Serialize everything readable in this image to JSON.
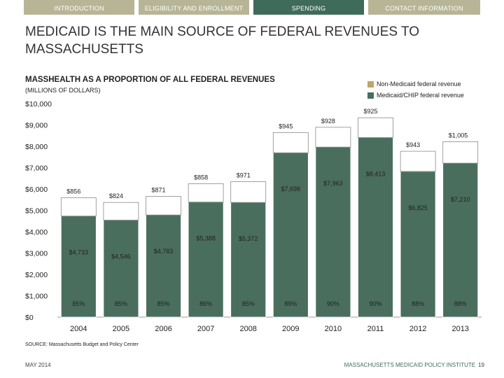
{
  "nav": {
    "tabs": [
      {
        "label": "INTRODUCTION",
        "active": false
      },
      {
        "label": "ELIGIBILITY AND ENROLLMENT",
        "active": false
      },
      {
        "label": "SPENDING",
        "active": true
      },
      {
        "label": "CONTACT INFORMATION",
        "active": false
      }
    ]
  },
  "slide": {
    "title": "MEDICAID IS THE MAIN SOURCE OF FEDERAL REVENUES TO MASSACHUSETTS",
    "source": "SOURCE: Massachusetts Budget and Policy Center",
    "date": "MAY 2014",
    "footer_org": "MASSACHUSETTS MEDICAID POLICY INSTITUTE",
    "page_number": "19"
  },
  "chart_data": {
    "type": "bar",
    "stacked": true,
    "title": "MASSHEALTH AS A PROPORTION OF ALL FEDERAL REVENUES",
    "subtitle": "(MILLIONS OF DOLLARS)",
    "categories": [
      "2004",
      "2005",
      "2006",
      "2007",
      "2008",
      "2009",
      "2010",
      "2011",
      "2012",
      "2013"
    ],
    "series": [
      {
        "name": "Medicaid/CHIP federal revenue",
        "color": "#4a6e5e",
        "values": [
          4733,
          4546,
          4783,
          5388,
          5372,
          7698,
          7963,
          8413,
          6825,
          7210
        ],
        "labels": [
          "$4,733",
          "$4,546",
          "$4,783",
          "$5,388",
          "$5,372",
          "$7,698",
          "$7,963",
          "$8,413",
          "$6,825",
          "$7,210"
        ]
      },
      {
        "name": "Non-Medicaid federal revenue",
        "color": "#bfa56a",
        "values": [
          856,
          824,
          871,
          858,
          971,
          945,
          928,
          925,
          943,
          1005
        ],
        "labels": [
          "$856",
          "$824",
          "$871",
          "$858",
          "$971",
          "$945",
          "$928",
          "$925",
          "$943",
          "$1,005"
        ]
      }
    ],
    "percent_labels": [
      "85%",
      "85%",
      "85%",
      "86%",
      "85%",
      "89%",
      "90%",
      "90%",
      "88%",
      "88%"
    ],
    "yticks": [
      0,
      1000,
      2000,
      3000,
      4000,
      5000,
      6000,
      7000,
      8000,
      9000,
      10000
    ],
    "ytick_labels": [
      "$0",
      "$1,000",
      "$2,000",
      "$3,000",
      "$4,000",
      "$5,000",
      "$6,000",
      "$7,000",
      "$8,000",
      "$9,000",
      "$10,000"
    ],
    "ylim": [
      0,
      10000
    ],
    "grid": false,
    "legend_position": "top-right"
  }
}
